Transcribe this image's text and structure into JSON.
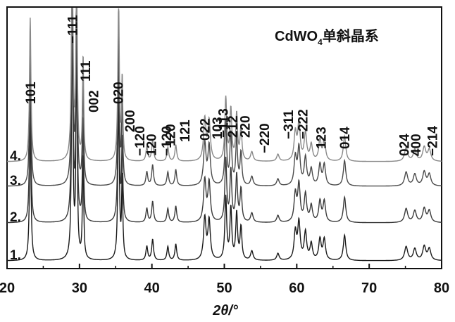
{
  "chart_data": {
    "type": "line",
    "title": "CdWO",
    "title_subscript": "4",
    "title_suffix": "单斜晶系",
    "xlabel": "2θ/°",
    "ylabel": "",
    "xlim": [
      20,
      80
    ],
    "x_ticks": [
      20,
      30,
      40,
      50,
      60,
      70,
      80
    ],
    "grid": false,
    "series": [
      {
        "name": "1.",
        "color": "#1a1a1a"
      },
      {
        "name": "2.",
        "color": "#3a3a3a"
      },
      {
        "name": "3.",
        "color": "#4a4a4a"
      },
      {
        "name": "4.",
        "color": "#888888"
      }
    ],
    "peaks": [
      {
        "x": 23.2,
        "h": 0.62,
        "w": 0.12
      },
      {
        "x": 29.0,
        "h": 1.0,
        "w": 0.12
      },
      {
        "x": 29.6,
        "h": 0.95,
        "w": 0.1
      },
      {
        "x": 30.5,
        "h": 0.45,
        "w": 0.1
      },
      {
        "x": 35.4,
        "h": 0.7,
        "w": 0.12
      },
      {
        "x": 35.9,
        "h": 0.35,
        "w": 0.1
      },
      {
        "x": 39.3,
        "h": 0.06,
        "w": 0.15
      },
      {
        "x": 40.1,
        "h": 0.09,
        "w": 0.15
      },
      {
        "x": 42.2,
        "h": 0.06,
        "w": 0.15
      },
      {
        "x": 43.3,
        "h": 0.07,
        "w": 0.15
      },
      {
        "x": 47.3,
        "h": 0.18,
        "w": 0.2
      },
      {
        "x": 47.9,
        "h": 0.17,
        "w": 0.2
      },
      {
        "x": 50.2,
        "h": 0.27,
        "w": 0.15
      },
      {
        "x": 50.9,
        "h": 0.22,
        "w": 0.15
      },
      {
        "x": 51.7,
        "h": 0.2,
        "w": 0.15
      },
      {
        "x": 52.3,
        "h": 0.14,
        "w": 0.15
      },
      {
        "x": 53.8,
        "h": 0.04,
        "w": 0.2
      },
      {
        "x": 57.4,
        "h": 0.03,
        "w": 0.2
      },
      {
        "x": 59.8,
        "h": 0.12,
        "w": 0.2
      },
      {
        "x": 60.3,
        "h": 0.16,
        "w": 0.2
      },
      {
        "x": 61.2,
        "h": 0.12,
        "w": 0.2
      },
      {
        "x": 62.0,
        "h": 0.07,
        "w": 0.2
      },
      {
        "x": 63.2,
        "h": 0.09,
        "w": 0.2
      },
      {
        "x": 63.8,
        "h": 0.09,
        "w": 0.2
      },
      {
        "x": 66.6,
        "h": 0.11,
        "w": 0.2
      },
      {
        "x": 75.1,
        "h": 0.06,
        "w": 0.25
      },
      {
        "x": 76.3,
        "h": 0.05,
        "w": 0.25
      },
      {
        "x": 77.6,
        "h": 0.06,
        "w": 0.25
      },
      {
        "x": 78.3,
        "h": 0.05,
        "w": 0.25
      }
    ],
    "annotations": [
      {
        "text": "101",
        "x": 23.2
      },
      {
        "text": "−111",
        "x": 29.0
      },
      {
        "text": "111",
        "x": 30.8
      },
      {
        "text": "002",
        "x": 31.9
      },
      {
        "text": "020",
        "x": 35.3
      },
      {
        "text": "200",
        "x": 36.9
      },
      {
        "text": "−120",
        "x": 38.3
      },
      {
        "text": "120",
        "x": 39.9
      },
      {
        "text": "−120",
        "x": 42.0
      },
      {
        "text": "120",
        "x": 42.5
      },
      {
        "text": "121",
        "x": 44.5
      },
      {
        "text": "022",
        "x": 47.3
      },
      {
        "text": "103",
        "x": 49.0
      },
      {
        "text": "−113",
        "x": 49.8
      },
      {
        "text": "212",
        "x": 51.1
      },
      {
        "text": "220",
        "x": 52.8
      },
      {
        "text": "−220",
        "x": 55.5
      },
      {
        "text": "−311",
        "x": 58.8
      },
      {
        "text": "−222",
        "x": 60.8
      },
      {
        "text": "123",
        "x": 63.3
      },
      {
        "text": "014",
        "x": 66.6
      },
      {
        "text": "024",
        "x": 74.8
      },
      {
        "text": "400",
        "x": 76.4
      },
      {
        "text": "−214",
        "x": 78.7
      }
    ]
  }
}
